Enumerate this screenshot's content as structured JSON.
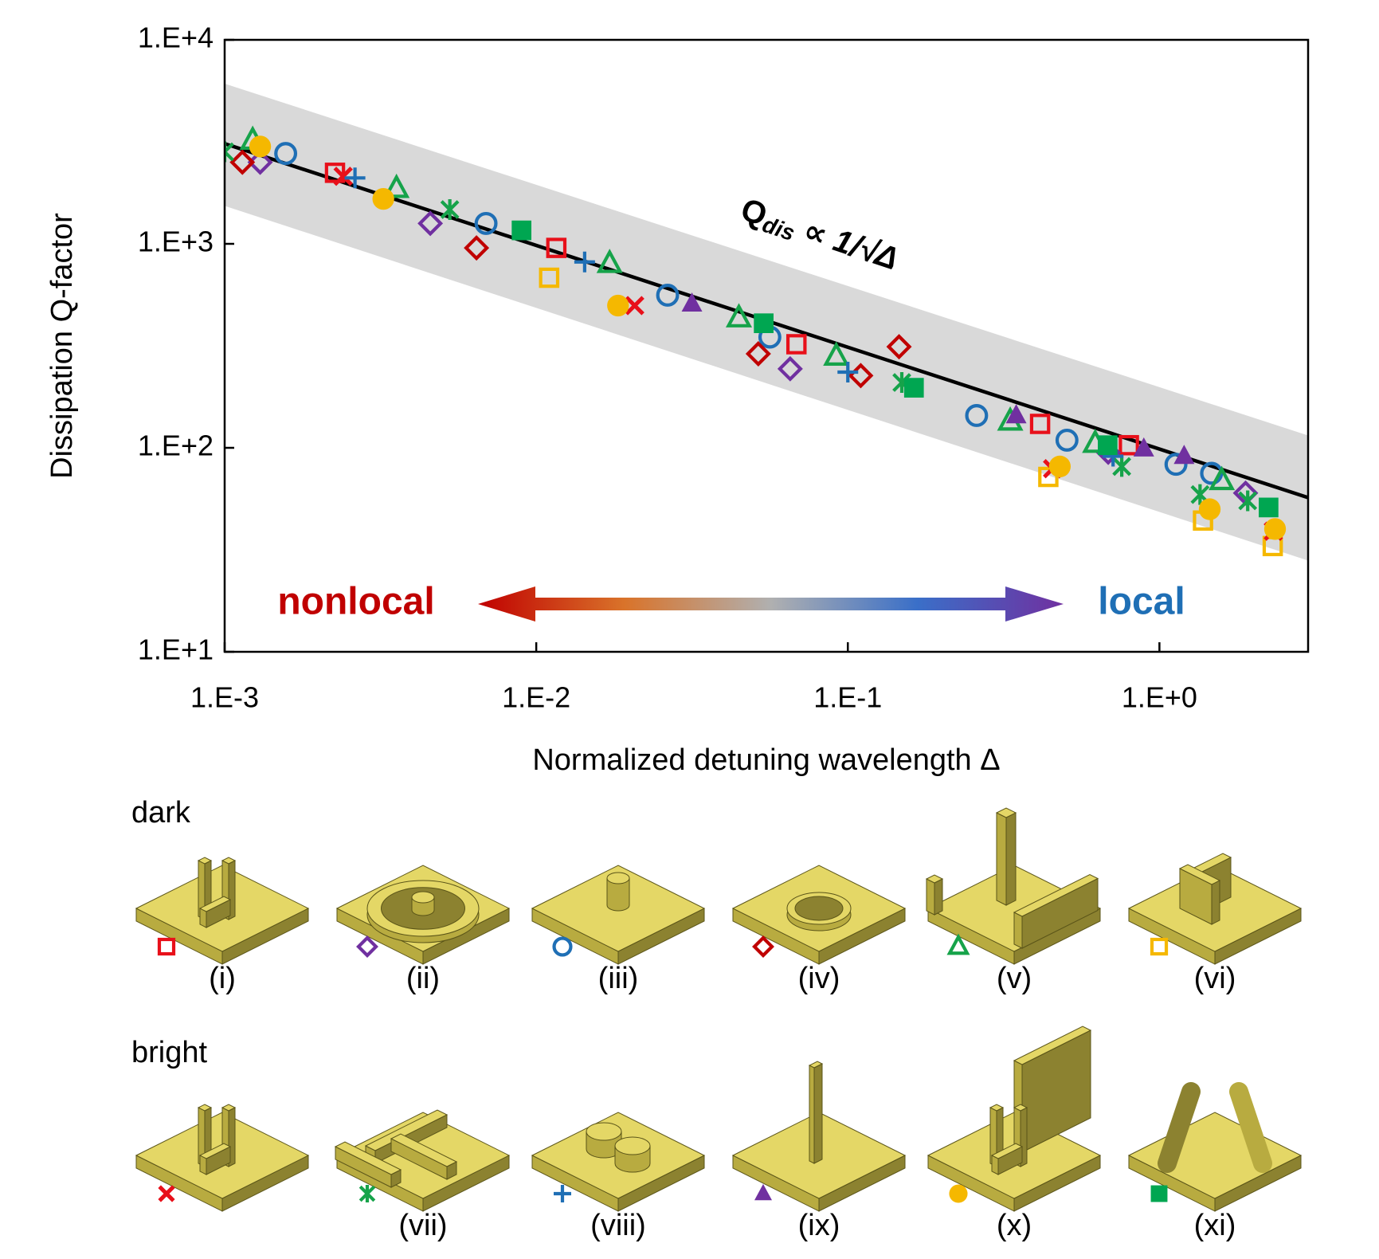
{
  "chart_data": {
    "type": "scatter",
    "x_label": "Normalized detuning wavelength Δ",
    "y_label": "Dissipation Q-factor",
    "x_log": true,
    "y_log": true,
    "xlim": [
      0.001,
      3
    ],
    "ylim": [
      10,
      10000
    ],
    "xticks": [
      {
        "value": 0.001,
        "label": "1.E-3"
      },
      {
        "value": 0.01,
        "label": "1.E-2"
      },
      {
        "value": 0.1,
        "label": "1.E-1"
      },
      {
        "value": 1,
        "label": "1.E+0"
      }
    ],
    "yticks": [
      {
        "value": 10,
        "label": "1.E+1"
      },
      {
        "value": 100,
        "label": "1.E+2"
      },
      {
        "value": 1000,
        "label": "1.E+3"
      },
      {
        "value": 10000,
        "label": "1.E+4"
      }
    ],
    "fit_line": {
      "x": [
        0.001,
        3
      ],
      "y": [
        3100,
        57
      ],
      "color": "#000000"
    },
    "band": {
      "x": [
        0.001,
        3
      ],
      "upper": [
        6100,
        115
      ],
      "lower": [
        1535,
        28
      ],
      "color": "#d9d9d9"
    },
    "formula": {
      "main": "Q",
      "sub": "dis",
      "rest": " ∝ 1/√Δ"
    },
    "arrow_labels": {
      "left": "nonlocal",
      "left_color": "#c00000",
      "right": "local",
      "right_color": "#1f6fb5"
    },
    "legend_titles": [
      "dark",
      "bright"
    ],
    "series": [
      {
        "name": "(i)",
        "marker": "square-open",
        "color": "#e8101a",
        "x": [
          0.00226,
          0.0116,
          0.0684,
          0.414,
          0.798
        ],
        "values": [
          2230,
          955,
          322,
          131,
          103
        ]
      },
      {
        "name": "(ii)",
        "marker": "diamond-open",
        "color": "#7030a0",
        "x": [
          0.0013,
          0.00457,
          0.0653,
          0.685,
          1.89
        ],
        "values": [
          2512,
          1259,
          244,
          95,
          60
        ]
      },
      {
        "name": "(iii)",
        "marker": "circle-open",
        "color": "#1f6fb5",
        "x": [
          0.00157,
          0.0069,
          0.0264,
          0.0562,
          0.259,
          0.505,
          1.13,
          1.47
        ],
        "values": [
          2773,
          1259,
          560,
          349,
          144,
          109,
          83,
          75
        ]
      },
      {
        "name": "(iv)",
        "marker": "diamond-open",
        "color": "#c00000",
        "x": [
          0.00114,
          0.00643,
          0.0516,
          0.11,
          0.146
        ],
        "values": [
          2512,
          955,
          289,
          226,
          313
        ]
      },
      {
        "name": "(v)",
        "marker": "triangle-open",
        "color": "#16a34a",
        "x": [
          0.00123,
          0.00356,
          0.0172,
          0.0447,
          0.0918,
          0.332,
          0.622,
          1.585
        ],
        "values": [
          3214,
          1866,
          800,
          433,
          281,
          135,
          105,
          69
        ]
      },
      {
        "name": "(vi)",
        "marker": "square-open",
        "color": "#f5b800",
        "x": [
          0.011,
          0.44,
          1.38,
          2.31
        ],
        "values": [
          682,
          72,
          44,
          33
        ]
      },
      {
        "name": null,
        "marker": "x",
        "color": "#e8101a",
        "x": [
          0.0024,
          0.0207,
          0.454,
          2.32
        ],
        "values": [
          2143,
          498,
          79,
          39
        ]
      },
      {
        "name": "(vii)",
        "marker": "asterisk",
        "color": "#16a34a",
        "x": [
          0.001,
          0.00528,
          0.149,
          0.757,
          1.35,
          1.92
        ],
        "values": [
          2825,
          1472,
          209,
          81,
          59,
          55
        ]
      },
      {
        "name": "(viii)",
        "marker": "plus",
        "color": "#1f6fb5",
        "x": [
          0.00262,
          0.0143,
          0.1,
          0.71
        ],
        "values": [
          2104,
          815,
          235,
          91
        ]
      },
      {
        "name": "(ix)",
        "marker": "triangle",
        "color": "#7030a0",
        "x": [
          0.0316,
          0.347,
          0.891,
          1.2
        ],
        "values": [
          508,
          144,
          99,
          91
        ]
      },
      {
        "name": "(x)",
        "marker": "circle",
        "color": "#f5b800",
        "x": [
          0.0013,
          0.00323,
          0.0183,
          0.479,
          1.45,
          2.35
        ],
        "values": [
          3000,
          1660,
          498,
          81,
          50,
          40
        ]
      },
      {
        "name": "(xi)",
        "marker": "square",
        "color": "#00a651",
        "x": [
          0.00897,
          0.0537,
          0.163,
          0.682,
          2.24
        ],
        "values": [
          1164,
          408,
          197,
          103,
          51
        ]
      }
    ]
  }
}
